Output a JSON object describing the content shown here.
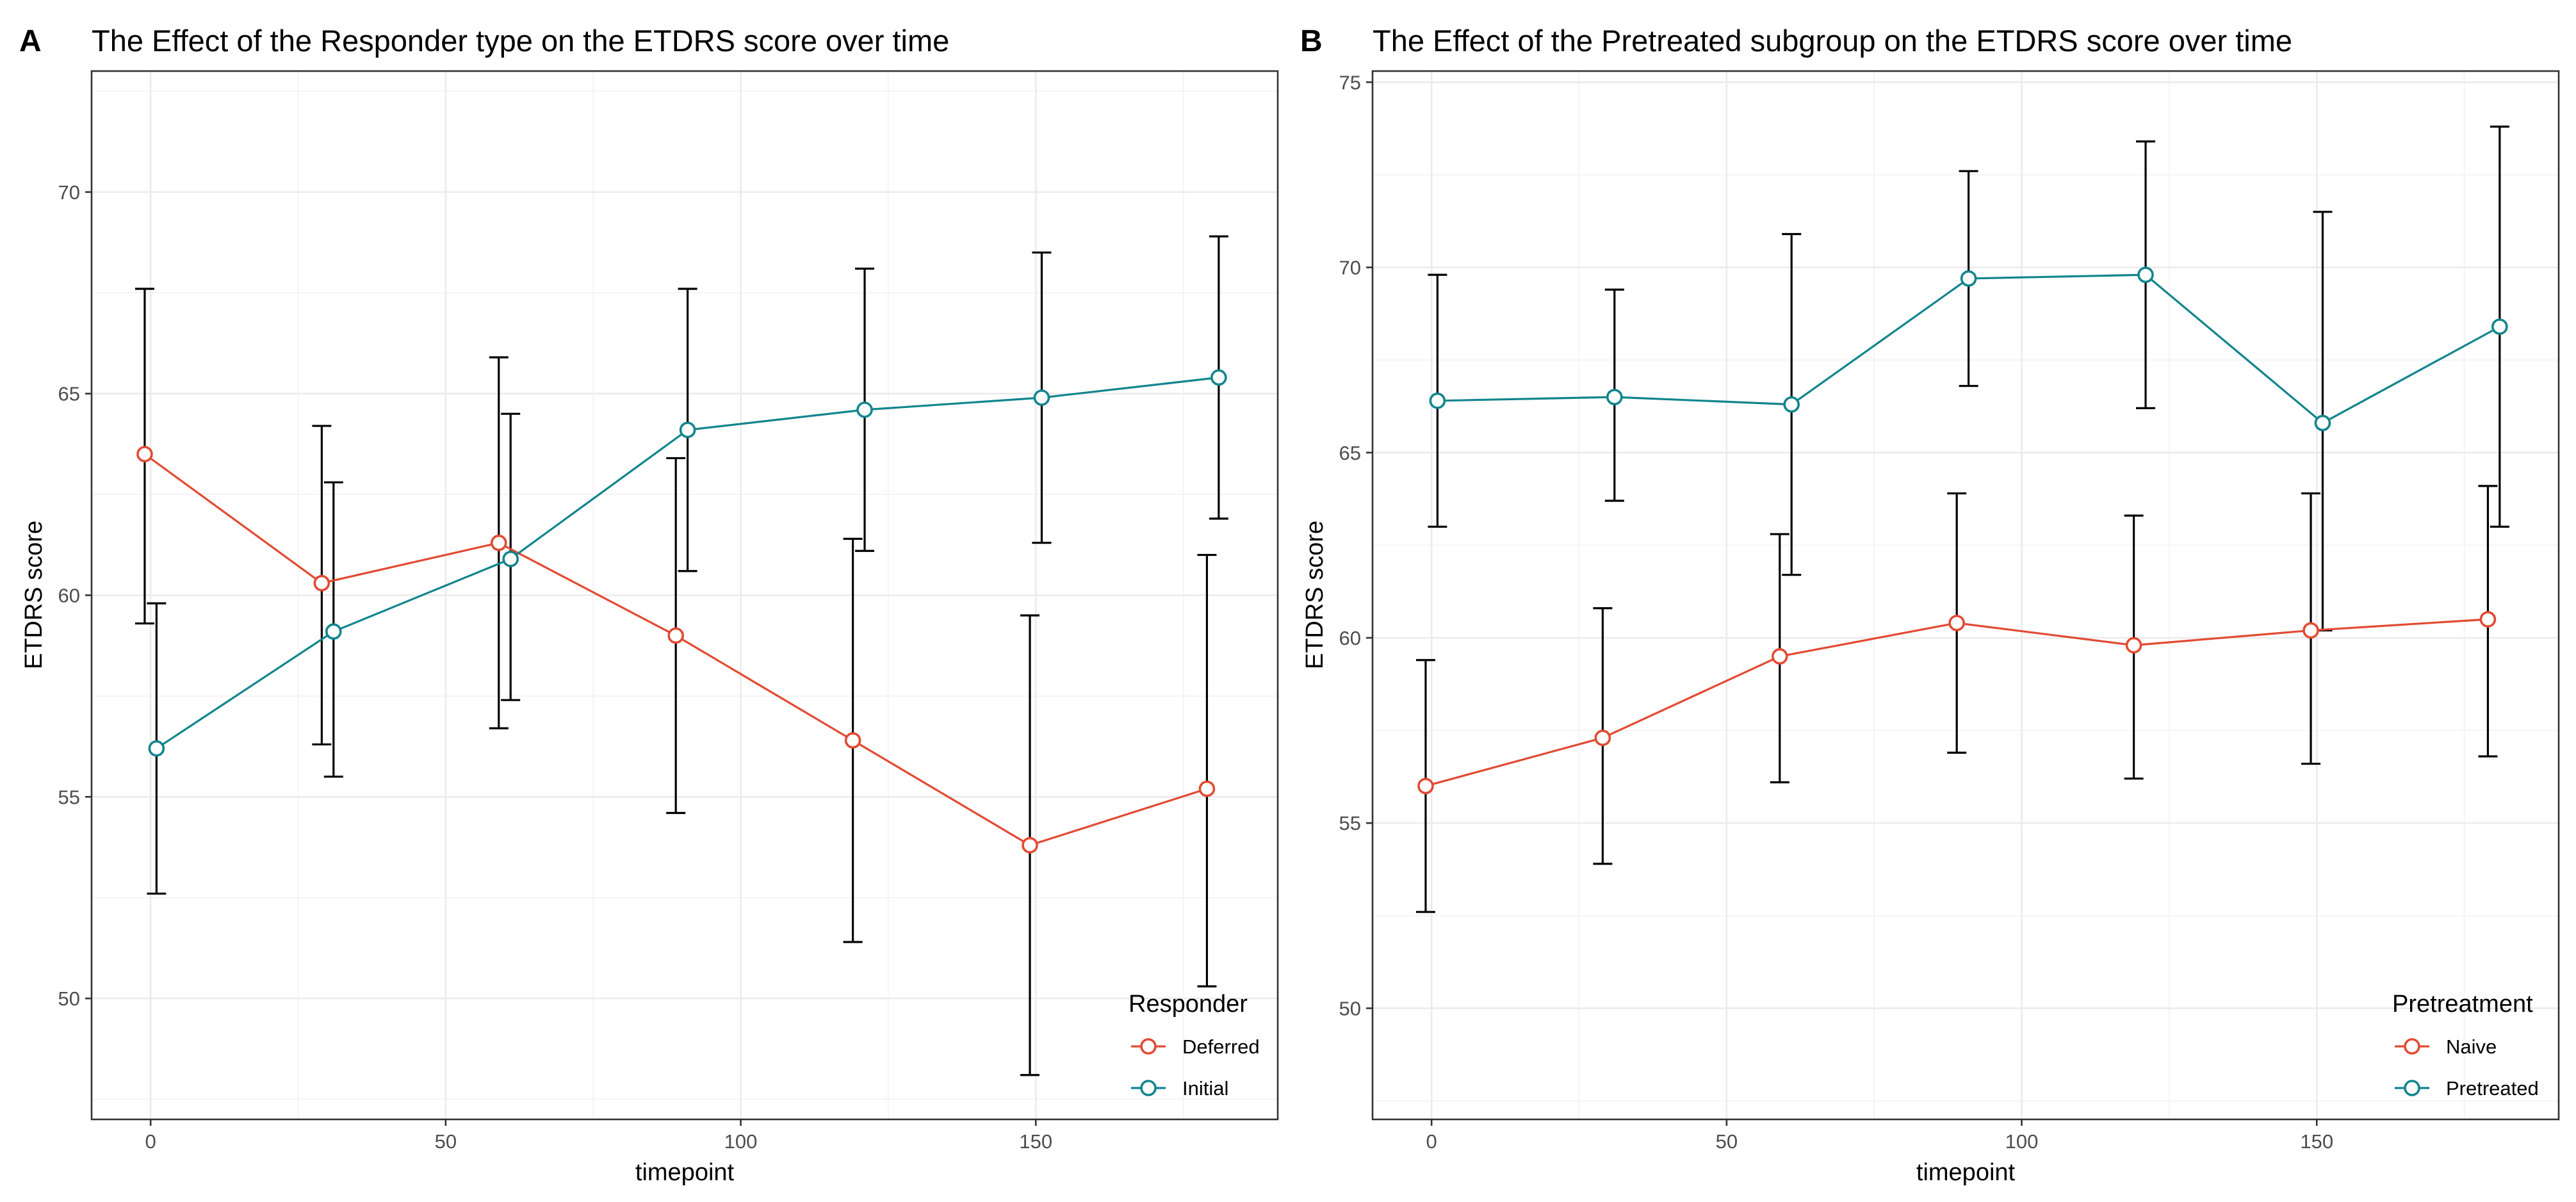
{
  "colors": {
    "series1": "#e24a33",
    "series2": "#11858d",
    "errorbar": "#000000"
  },
  "chart_data": [
    {
      "id": "A",
      "panel_label": "A",
      "type": "line",
      "title": "The Effect of the Responder type on the ETDRS score over time",
      "xlabel": "timepoint",
      "ylabel": "ETDRS score",
      "xlim": [
        -10,
        191
      ],
      "ylim": [
        47,
        73
      ],
      "xticks": [
        0,
        50,
        100,
        150
      ],
      "yticks": [
        50,
        55,
        60,
        65,
        70
      ],
      "grid": true,
      "legend": {
        "title": "Responder",
        "position": "bottom-right"
      },
      "series": [
        {
          "name": "Deferred",
          "color": "#e24a33",
          "x": [
            -1,
            29,
            59,
            89,
            119,
            149,
            179
          ],
          "y": [
            63.5,
            60.3,
            61.3,
            59.0,
            56.4,
            53.8,
            55.2
          ],
          "err_low": [
            59.3,
            56.3,
            56.7,
            54.6,
            51.4,
            48.1,
            50.3
          ],
          "err_high": [
            67.6,
            64.2,
            65.9,
            63.4,
            61.4,
            59.5,
            61.0
          ]
        },
        {
          "name": "Initial",
          "color": "#11858d",
          "x": [
            1,
            31,
            61,
            91,
            121,
            151,
            181
          ],
          "y": [
            56.2,
            59.1,
            60.9,
            64.1,
            64.6,
            64.9,
            65.4
          ],
          "err_low": [
            52.6,
            55.5,
            57.4,
            60.6,
            61.1,
            61.3,
            61.9
          ],
          "err_high": [
            59.8,
            62.8,
            64.5,
            67.6,
            68.1,
            68.5,
            68.9
          ]
        }
      ]
    },
    {
      "id": "B",
      "panel_label": "B",
      "type": "line",
      "title": "The Effect of the Pretreated subgroup on the ETDRS score over time",
      "xlabel": "timepoint",
      "ylabel": "ETDRS score",
      "xlim": [
        -10,
        191
      ],
      "ylim": [
        47,
        75.3
      ],
      "xticks": [
        0,
        50,
        100,
        150
      ],
      "yticks": [
        50,
        55,
        60,
        65,
        70,
        75
      ],
      "grid": true,
      "legend": {
        "title": "Pretreatment",
        "position": "bottom-right"
      },
      "series": [
        {
          "name": "Naive",
          "color": "#e24a33",
          "x": [
            -1,
            29,
            59,
            89,
            119,
            149,
            179
          ],
          "y": [
            56.0,
            57.3,
            59.5,
            60.4,
            59.8,
            60.2,
            60.5
          ],
          "err_low": [
            52.6,
            53.9,
            56.1,
            56.9,
            56.2,
            56.6,
            56.8
          ],
          "err_high": [
            59.4,
            60.8,
            62.8,
            63.9,
            63.3,
            63.9,
            64.1
          ]
        },
        {
          "name": "Pretreated",
          "color": "#11858d",
          "x": [
            1,
            31,
            61,
            91,
            121,
            151,
            181
          ],
          "y": [
            66.4,
            66.5,
            66.3,
            69.7,
            69.8,
            65.8,
            68.4
          ],
          "err_low": [
            63.0,
            63.7,
            61.7,
            66.8,
            66.2,
            60.2,
            63.0
          ],
          "err_high": [
            69.8,
            69.4,
            70.9,
            72.6,
            73.4,
            71.5,
            73.8
          ]
        }
      ]
    }
  ]
}
